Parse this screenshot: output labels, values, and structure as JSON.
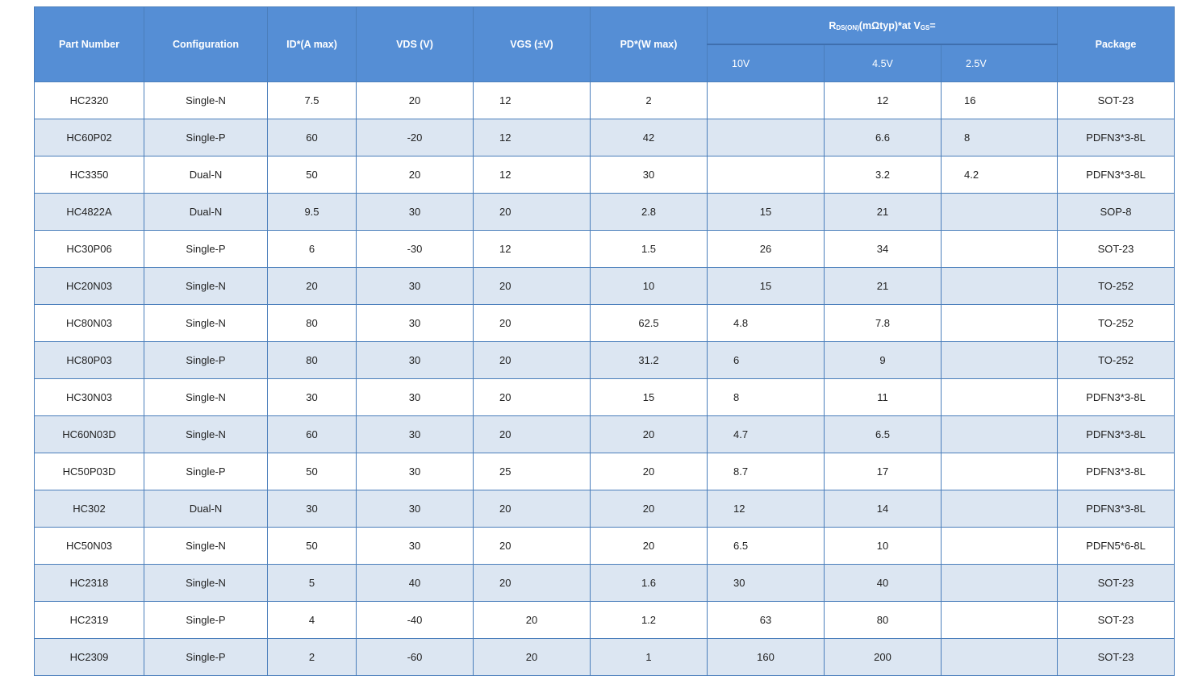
{
  "table": {
    "columns": [
      "Part Number",
      "Configuration",
      "ID*(A max)",
      "VDS (V)",
      "VGS (±V)",
      "PD*(W max)",
      "Package"
    ],
    "rds_title": [
      "R",
      "DS(ON)",
      "(mΩtyp)*at V",
      "GS",
      "="
    ],
    "rds_columns": [
      "10V",
      "4.5V",
      "2.5V"
    ],
    "rows": [
      [
        "HC2320",
        "Single-N",
        7.5,
        20,
        12,
        2,
        null,
        12,
        16,
        "SOT-23"
      ],
      [
        "HC60P02",
        "Single-P",
        60,
        -20,
        12,
        42,
        null,
        6.6,
        8,
        "PDFN3*3-8L"
      ],
      [
        "HC3350",
        "Dual-N",
        50,
        20,
        12,
        30,
        null,
        3.2,
        4.2,
        "PDFN3*3-8L"
      ],
      [
        "HC4822A",
        "Dual-N",
        9.5,
        30,
        20,
        2.8,
        15,
        21,
        null,
        "SOP-8"
      ],
      [
        "HC30P06",
        "Single-P",
        6,
        -30,
        12,
        1.5,
        26,
        34,
        null,
        "SOT-23"
      ],
      [
        "HC20N03",
        "Single-N",
        20,
        30,
        20,
        10,
        15,
        21,
        null,
        "TO-252"
      ],
      [
        "HC80N03",
        "Single-N",
        80,
        30,
        20,
        62.5,
        4.8,
        7.8,
        null,
        "TO-252"
      ],
      [
        "HC80P03",
        "Single-P",
        80,
        30,
        20,
        31.2,
        6,
        9,
        null,
        "TO-252"
      ],
      [
        "HC30N03",
        "Single-N",
        30,
        30,
        20,
        15,
        8,
        11,
        null,
        "PDFN3*3-8L"
      ],
      [
        "HC60N03D",
        "Single-N",
        60,
        30,
        20,
        20,
        4.7,
        6.5,
        null,
        "PDFN3*3-8L"
      ],
      [
        "HC50P03D",
        "Single-P",
        50,
        30,
        25,
        20,
        8.7,
        17,
        null,
        "PDFN3*3-8L"
      ],
      [
        "HC302",
        "Dual-N",
        30,
        30,
        20,
        20,
        12,
        14,
        null,
        "PDFN3*3-8L"
      ],
      [
        "HC50N03",
        "Single-N",
        50,
        30,
        20,
        20,
        6.5,
        10,
        null,
        "PDFN5*6-8L"
      ],
      [
        "HC2318",
        "Single-N",
        5,
        40,
        20,
        1.6,
        30,
        40,
        null,
        "SOT-23"
      ],
      [
        "HC2319",
        "Single-P",
        4,
        -40,
        20,
        1.2,
        63,
        80,
        null,
        "SOT-23"
      ],
      [
        "HC2309",
        "Single-P",
        2,
        -60,
        20,
        1,
        160,
        200,
        null,
        "SOT-23"
      ]
    ]
  }
}
